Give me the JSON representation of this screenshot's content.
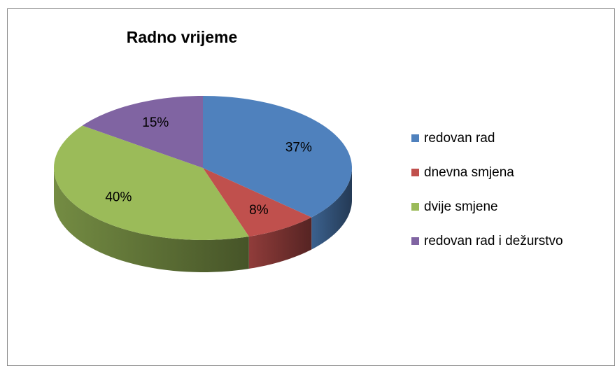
{
  "chart_data": {
    "type": "pie",
    "title": "Radno vrijeme",
    "categories": [
      "redovan rad",
      "dnevna smjena",
      "dvije smjene",
      "redovan rad i dežurstvo"
    ],
    "values": [
      37,
      8,
      40,
      15
    ],
    "value_labels": [
      "37%",
      "8%",
      "40%",
      "15%"
    ],
    "colors": [
      "#4f81bd",
      "#c0504d",
      "#9bbb59",
      "#8064a2"
    ],
    "legend": "right"
  }
}
